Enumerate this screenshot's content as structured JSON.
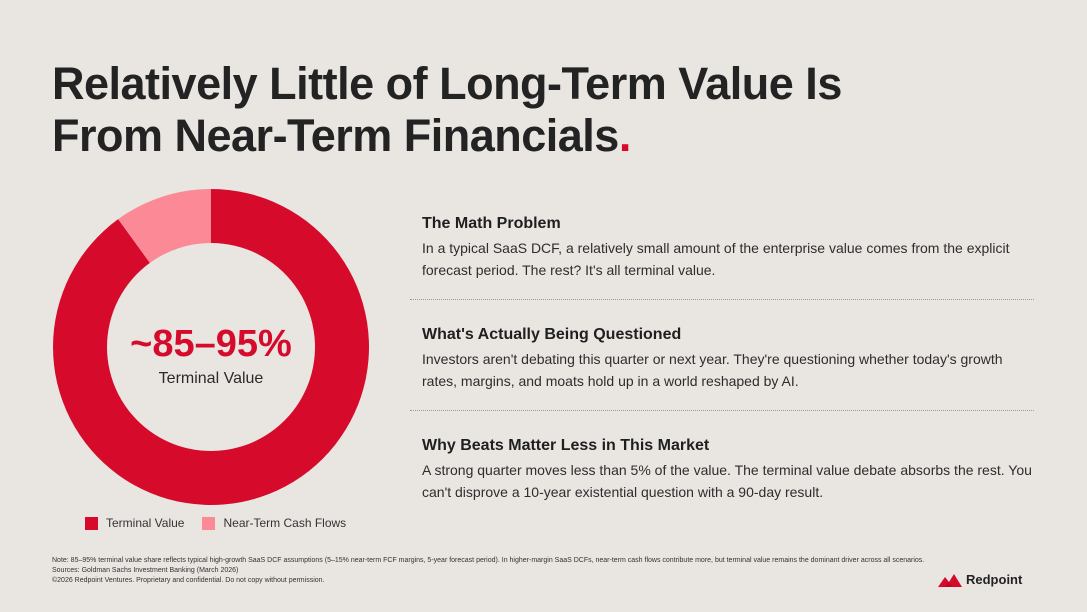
{
  "title": {
    "line1": "Relatively Little of Long-Term Value Is",
    "line2": "From Near-Term Financials",
    "dot": "."
  },
  "chart_data": {
    "type": "pie",
    "variant": "donut",
    "slices": [
      {
        "label": "Terminal Value",
        "value": 90,
        "color": "#d60b2c"
      },
      {
        "label": "Near-Term Cash Flows",
        "value": 10,
        "color": "#fb8a96"
      }
    ],
    "center_value": "~85–95%",
    "center_label": "Terminal Value",
    "legend": [
      "Terminal Value",
      "Near-Term Cash Flows"
    ]
  },
  "sections": [
    {
      "heading": "The Math Problem",
      "body": "In a typical SaaS DCF, a relatively small amount of the enterprise value comes from the explicit forecast period. The rest? It's all terminal value."
    },
    {
      "heading": "What's Actually Being Questioned",
      "body": "Investors aren't debating this quarter or next year. They're questioning whether today's growth rates, margins, and moats hold up in a world reshaped by AI."
    },
    {
      "heading": "Why Beats Matter Less in This Market",
      "body": "A strong quarter moves less than 5% of the value. The terminal value debate absorbs the rest. You can't disprove a 10-year existential question with a 90-day result."
    }
  ],
  "footer": {
    "note": "Note: 85–95% terminal value share reflects typical high-growth SaaS DCF assumptions (5–15% near-term FCF margins, 5-year forecast period). In higher-margin SaaS DCFs, near-term cash flows contribute more, but terminal value remains the dominant driver across all scenarios.",
    "sources": "Sources: Goldman Sachs Investment Banking (March 2026)",
    "copyright": "©2026 Redpoint Ventures. Proprietary and confidential. Do not copy without permission."
  },
  "logo": {
    "text": "Redpoint",
    "icon": "redpoint-logo-icon"
  },
  "colors": {
    "accent": "#d60b2c",
    "secondary": "#fb8a96",
    "background": "#e9e6e2"
  }
}
